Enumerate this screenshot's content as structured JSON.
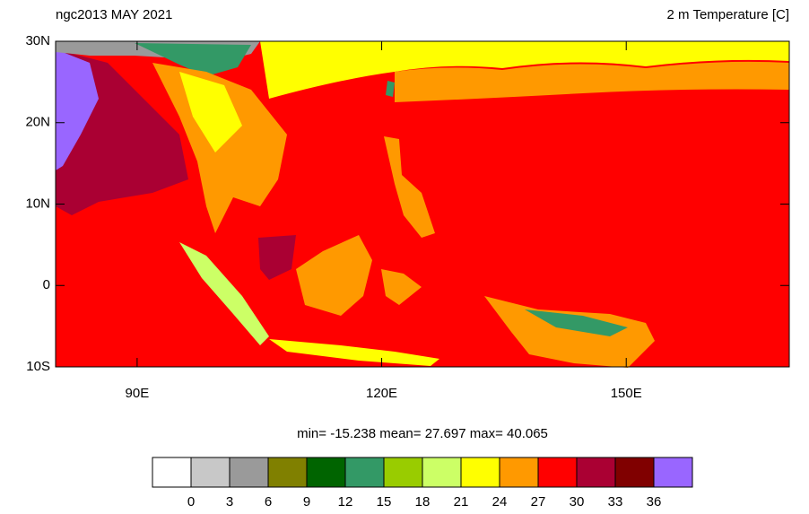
{
  "header": {
    "left_title": "ngc2013 MAY 2021",
    "right_title": "2 m Temperature [C]"
  },
  "map": {
    "xlim": [
      80,
      170
    ],
    "ylim": [
      -10,
      30
    ],
    "xticks": [
      {
        "value": 90,
        "label": "90E"
      },
      {
        "value": 120,
        "label": "120E"
      },
      {
        "value": 150,
        "label": "150E"
      }
    ],
    "yticks": [
      {
        "value": 30,
        "label": "30N"
      },
      {
        "value": 20,
        "label": "20N"
      },
      {
        "value": 10,
        "label": "10N"
      },
      0,
      {
        "value": -10,
        "label": "10S"
      }
    ],
    "stats": "min= -15.238  mean=  27.697  max=  40.065"
  },
  "colorbar": {
    "levels": [
      0,
      3,
      6,
      9,
      12,
      15,
      18,
      21,
      24,
      27,
      30,
      33,
      36
    ],
    "colors": [
      "#ffffff",
      "#c8c8c8",
      "#9a9a9a",
      "#808000",
      "#006400",
      "#339966",
      "#99cc00",
      "#ccff66",
      "#ffff00",
      "#ff9900",
      "#ff0000",
      "#aa0033",
      "#800000",
      "#9966ff"
    ]
  }
}
